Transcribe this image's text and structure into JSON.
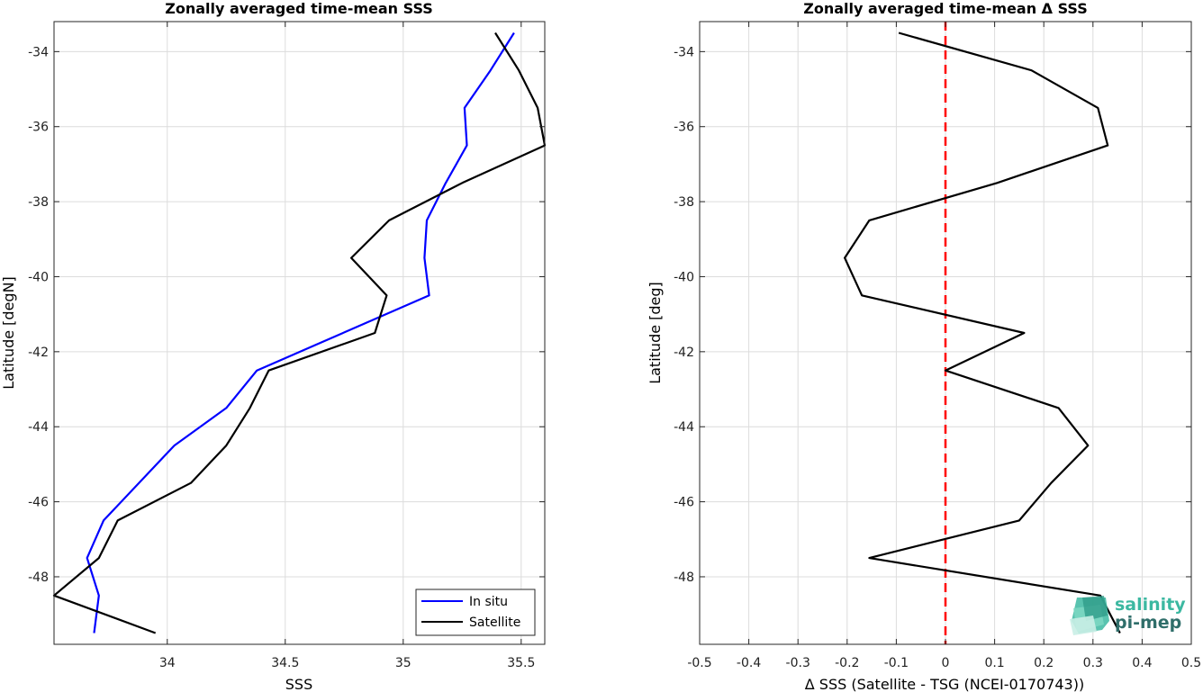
{
  "chart_data": [
    {
      "type": "line",
      "title": "Zonally averaged time-mean SSS",
      "xlabel": "SSS",
      "ylabel": "Latitude [degN]",
      "xlim": [
        33.52,
        35.6
      ],
      "ylim": [
        -49.8,
        -33.2
      ],
      "xticks": [
        34,
        34.5,
        35,
        35.5
      ],
      "xtick_labels": [
        "34",
        "34.5",
        "35",
        "35.5"
      ],
      "yticks": [
        -48,
        -46,
        -44,
        -42,
        -40,
        -38,
        -36,
        -34
      ],
      "ytick_labels": [
        "-48",
        "-46",
        "-44",
        "-42",
        "-40",
        "-38",
        "-36",
        "-34"
      ],
      "grid": true,
      "legend": "bottom-right",
      "series": [
        {
          "name": "In situ",
          "color": "#0000ff",
          "x": [
            35.47,
            35.37,
            35.26,
            35.27,
            35.18,
            35.1,
            35.09,
            35.11,
            34.38,
            34.25,
            34.03,
            33.73,
            33.66,
            33.71,
            33.69
          ],
          "y": [
            -33.5,
            -34.5,
            -35.5,
            -36.5,
            -37.5,
            -38.5,
            -39.5,
            -40.5,
            -42.5,
            -43.5,
            -44.5,
            -46.5,
            -47.5,
            -48.5,
            -49.5
          ]
        },
        {
          "name": "Satellite",
          "color": "#000000",
          "x": [
            35.39,
            35.49,
            35.57,
            35.6,
            35.25,
            34.94,
            34.78,
            34.93,
            34.88,
            34.43,
            34.35,
            34.25,
            34.1,
            33.79,
            33.71,
            33.52,
            33.95
          ],
          "y": [
            -33.5,
            -34.5,
            -35.5,
            -36.5,
            -37.5,
            -38.5,
            -39.5,
            -40.5,
            -41.5,
            -42.5,
            -43.5,
            -44.5,
            -45.5,
            -46.5,
            -47.5,
            -48.5,
            -49.5
          ]
        }
      ]
    },
    {
      "type": "line",
      "title": "Zonally averaged time-mean Δ SSS",
      "xlabel": "Δ SSS (Satellite - TSG (NCEI-0170743))",
      "ylabel": "Latitude [deg]",
      "xlim": [
        -0.5,
        0.5
      ],
      "ylim": [
        -49.8,
        -33.2
      ],
      "xticks": [
        -0.5,
        -0.4,
        -0.3,
        -0.2,
        -0.1,
        0,
        0.1,
        0.2,
        0.3,
        0.4,
        0.5
      ],
      "xtick_labels": [
        "-0.5",
        "-0.4",
        "-0.3",
        "-0.2",
        "-0.1",
        "0",
        "0.1",
        "0.2",
        "0.3",
        "0.4",
        "0.5"
      ],
      "yticks": [
        -48,
        -46,
        -44,
        -42,
        -40,
        -38,
        -36,
        -34
      ],
      "ytick_labels": [
        "-48",
        "-46",
        "-44",
        "-42",
        "-40",
        "-38",
        "-36",
        "-34"
      ],
      "grid": true,
      "reference_line": {
        "x": 0,
        "color": "#ff0000",
        "style": "dashed"
      },
      "series": [
        {
          "color": "#000000",
          "x": [
            -0.095,
            0.175,
            0.31,
            0.33,
            0.105,
            -0.155,
            -0.205,
            -0.17,
            0.16,
            0.0,
            0.23,
            0.29,
            0.215,
            0.15,
            -0.155,
            0.315,
            0.355
          ],
          "y": [
            -33.5,
            -34.5,
            -35.5,
            -36.5,
            -37.5,
            -38.5,
            -39.5,
            -40.5,
            -41.5,
            -42.5,
            -43.5,
            -44.5,
            -45.5,
            -46.5,
            -47.5,
            -48.5,
            -49.5
          ]
        }
      ]
    }
  ],
  "logo": {
    "line1": "salinity",
    "line2": "pi-mep"
  }
}
